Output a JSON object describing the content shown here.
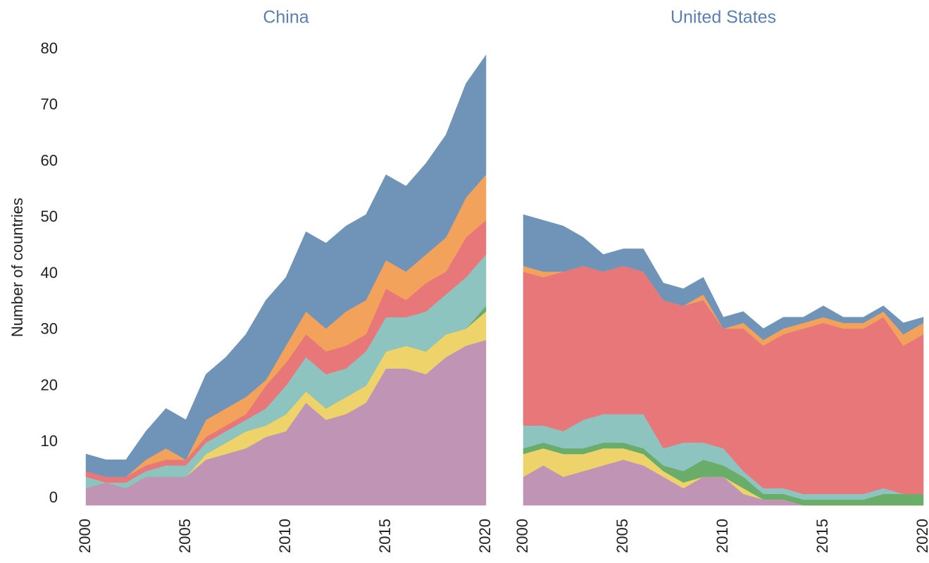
{
  "chart_data": [
    {
      "type": "area",
      "title": "China",
      "y_label": "Number of countries",
      "x": [
        2000,
        2001,
        2002,
        2003,
        2004,
        2005,
        2006,
        2007,
        2008,
        2009,
        2010,
        2011,
        2012,
        2013,
        2014,
        2015,
        2016,
        2017,
        2018,
        2019,
        2020
      ],
      "xlim": [
        2000,
        2020
      ],
      "xticks": [
        2000,
        2005,
        2010,
        2015,
        2020
      ],
      "ylim": [
        0,
        80
      ],
      "yticks": [
        0,
        10,
        20,
        30,
        40,
        50,
        60,
        70,
        80
      ],
      "series": [
        {
          "color": "#bf94b4",
          "values": [
            3,
            4,
            3,
            5,
            5,
            5,
            8,
            9,
            10,
            12,
            13,
            18,
            15,
            16,
            18,
            24,
            24,
            23,
            26,
            28,
            29
          ]
        },
        {
          "color": "#eed36a",
          "values": [
            0,
            0,
            0,
            0,
            0,
            0,
            1,
            2,
            3,
            2,
            3,
            2,
            2,
            3,
            3,
            3,
            4,
            4,
            4,
            3,
            5
          ]
        },
        {
          "color": "#6aad6a",
          "values": [
            0,
            0,
            0,
            0,
            0,
            0,
            0,
            0,
            0,
            0,
            0,
            0,
            0,
            0,
            0,
            0,
            0,
            0,
            0,
            0,
            1
          ]
        },
        {
          "color": "#8ec4c0",
          "values": [
            2,
            0,
            1,
            1,
            2,
            2,
            2,
            2,
            2,
            3,
            5,
            6,
            6,
            5,
            6,
            6,
            5,
            7,
            7,
            9,
            9
          ]
        },
        {
          "color": "#e8777a",
          "values": [
            1,
            1,
            1,
            1,
            1,
            1,
            1,
            1,
            1,
            4,
            4,
            4,
            4,
            4,
            3,
            5,
            3,
            5,
            4,
            7,
            6
          ]
        },
        {
          "color": "#f2a25a",
          "values": [
            0,
            0,
            0,
            1,
            2,
            0,
            3,
            3,
            3,
            1,
            3,
            4,
            4,
            6,
            6,
            5,
            5,
            5,
            6,
            7,
            8
          ]
        },
        {
          "color": "#7094b8",
          "values": [
            3,
            3,
            3,
            5,
            7,
            7,
            8,
            9,
            11,
            14,
            12,
            14,
            15,
            15,
            15,
            15,
            15,
            16,
            18,
            20,
            21
          ]
        }
      ]
    },
    {
      "type": "area",
      "title": "United States",
      "x": [
        2000,
        2001,
        2002,
        2003,
        2004,
        2005,
        2006,
        2007,
        2008,
        2009,
        2010,
        2011,
        2012,
        2013,
        2014,
        2015,
        2016,
        2017,
        2018,
        2019,
        2020
      ],
      "xlim": [
        2000,
        2020
      ],
      "xticks": [
        2000,
        2005,
        2010,
        2015,
        2020
      ],
      "ylim": [
        0,
        80
      ],
      "series": [
        {
          "color": "#bf94b4",
          "values": [
            5,
            7,
            5,
            6,
            7,
            8,
            7,
            5,
            3,
            5,
            5,
            2,
            1,
            1,
            0,
            0,
            0,
            0,
            0,
            0,
            0
          ]
        },
        {
          "color": "#eed36a",
          "values": [
            4,
            3,
            4,
            3,
            3,
            2,
            2,
            1,
            1,
            0,
            0,
            1,
            0,
            0,
            0,
            0,
            0,
            0,
            0,
            0,
            0
          ]
        },
        {
          "color": "#6aad6a",
          "values": [
            1,
            1,
            1,
            1,
            1,
            1,
            1,
            1,
            2,
            3,
            2,
            2,
            1,
            1,
            1,
            1,
            1,
            1,
            2,
            2,
            2
          ]
        },
        {
          "color": "#8ec4c0",
          "values": [
            4,
            3,
            3,
            5,
            5,
            5,
            6,
            3,
            5,
            3,
            3,
            1,
            1,
            1,
            1,
            1,
            1,
            1,
            1,
            0,
            0
          ]
        },
        {
          "color": "#e8777a",
          "values": [
            27,
            26,
            28,
            27,
            25,
            26,
            25,
            26,
            24,
            25,
            21,
            25,
            25,
            27,
            29,
            30,
            29,
            29,
            30,
            26,
            28
          ]
        },
        {
          "color": "#f2a25a",
          "values": [
            1,
            1,
            0,
            0,
            0,
            0,
            0,
            0,
            0,
            1,
            0,
            1,
            1,
            1,
            1,
            1,
            1,
            1,
            1,
            2,
            2
          ]
        },
        {
          "color": "#7094b8",
          "values": [
            9,
            9,
            8,
            5,
            3,
            3,
            4,
            3,
            3,
            3,
            2,
            2,
            2,
            2,
            1,
            2,
            1,
            1,
            1,
            2,
            1
          ]
        }
      ]
    }
  ]
}
